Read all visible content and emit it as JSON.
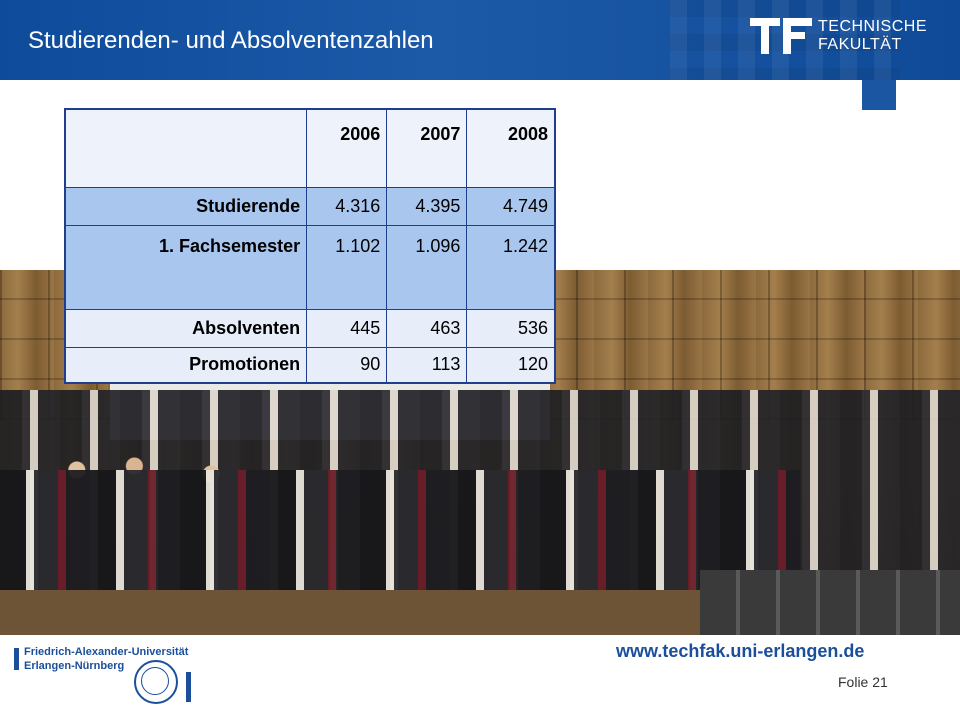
{
  "header": {
    "title": "Studierenden- und Absolventenzahlen",
    "logo_line1": "TECHNISCHE",
    "logo_line2": "FAKULTÄT",
    "accent": "#0e4b9b"
  },
  "table": {
    "columns": [
      "",
      "2006",
      "2007",
      "2008"
    ],
    "rows": [
      {
        "label": "Studierende",
        "values": [
          "4.316",
          "4.395",
          "4.749"
        ]
      },
      {
        "label": "1. Fachsemester",
        "values": [
          "1.102",
          "1.096",
          "1.242"
        ]
      },
      {
        "label": "Absolventen",
        "values": [
          "445",
          "463",
          "536"
        ]
      },
      {
        "label": "Promotionen",
        "values": [
          "90",
          "113",
          "120"
        ]
      }
    ]
  },
  "footer": {
    "url": "www.techfak.uni-erlangen.de",
    "slide": "Folie 21",
    "university_line1": "Friedrich-Alexander-Universität",
    "university_line2": "Erlangen-Nürnberg"
  }
}
